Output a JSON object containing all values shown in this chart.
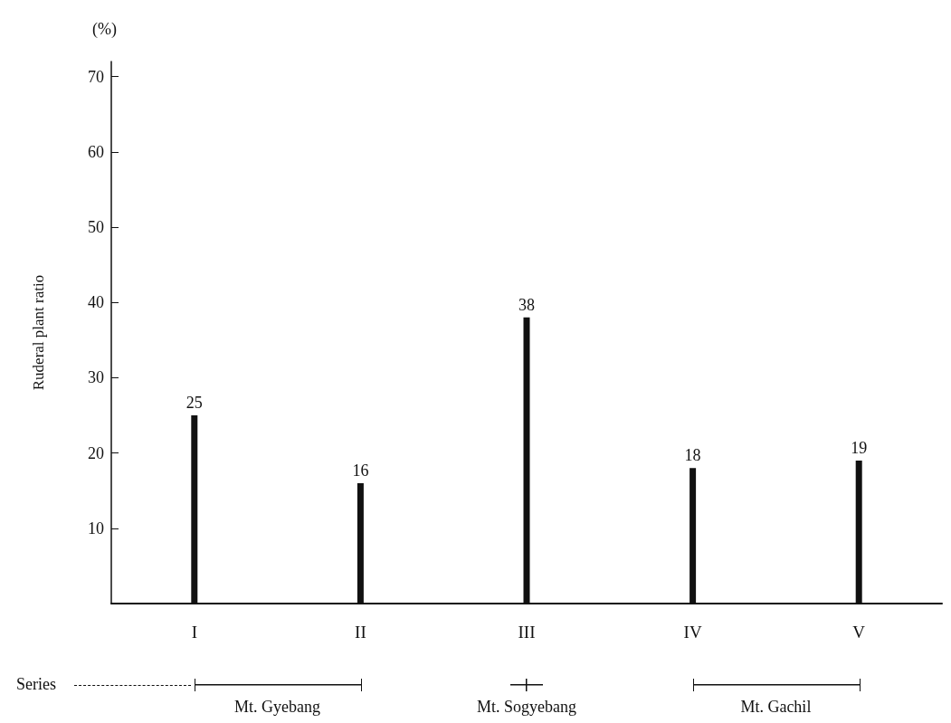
{
  "chart_data": {
    "type": "bar",
    "categories": [
      "I",
      "II",
      "III",
      "IV",
      "V"
    ],
    "values": [
      25,
      16,
      38,
      18,
      19
    ],
    "color": "#111111",
    "ylabel": "Ruderal plant ratio",
    "ylim": [
      0,
      72
    ],
    "yticks": [
      10,
      20,
      30,
      40,
      50,
      60,
      70
    ],
    "data_labels": true,
    "grid": false,
    "annotations": [
      "(%)",
      "Series",
      "Mt. Gyebang",
      "Mt. Sogyebang",
      "Mt. Gachil"
    ]
  }
}
